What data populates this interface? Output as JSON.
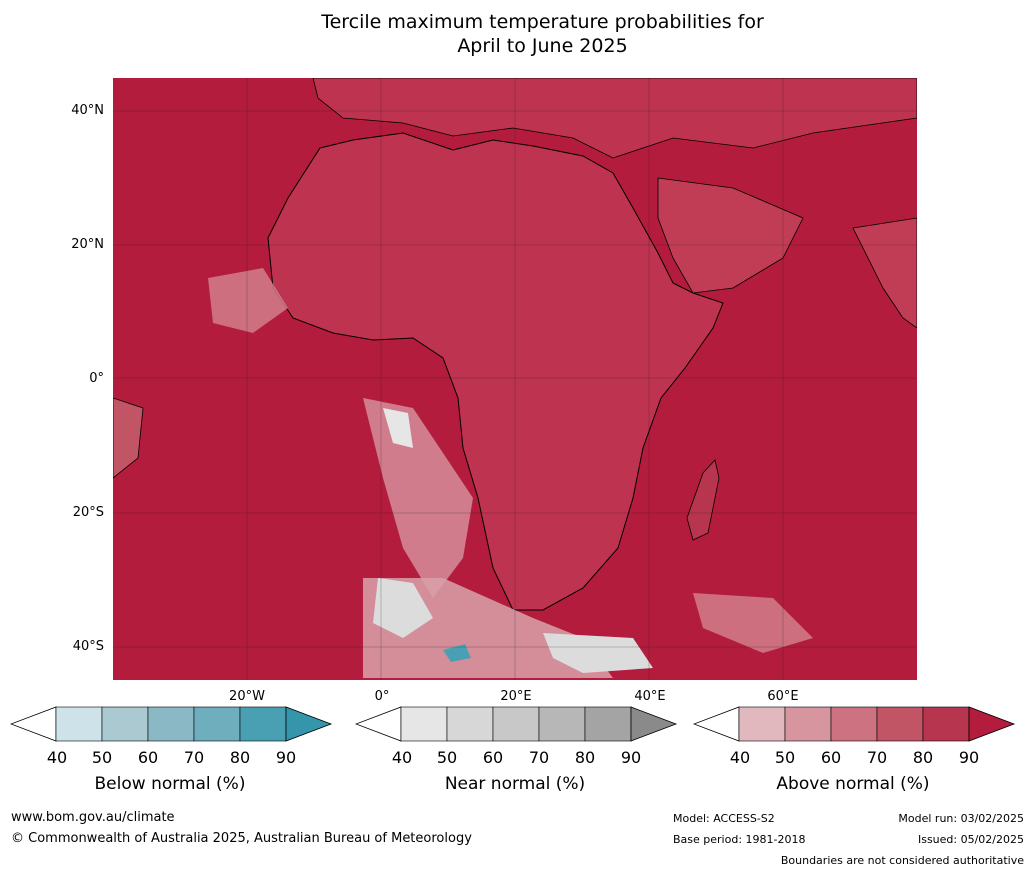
{
  "title_line1": "Tercile maximum temperature probabilities for",
  "title_line2": "April to June 2025",
  "lat_labels": [
    "40°N",
    "20°N",
    "0°",
    "20°S",
    "40°S"
  ],
  "lon_labels": [
    "20°W",
    "0°",
    "20°E",
    "40°E",
    "60°E"
  ],
  "colors": {
    "ocean_dominant": "#b31c3c",
    "above_90": "#b31c3c",
    "above_80": "#c33b52",
    "above_70": "#cb5a69",
    "above_60": "#d3848f",
    "above_50": "#d9a2aa",
    "near_normal": "#dcdcdc",
    "below_normal": "#4aa0b3",
    "coastline": "#000000",
    "country_border": "#888888",
    "gridline": "#222222"
  },
  "legends": [
    {
      "title": "Below normal (%)",
      "ticks": [
        "40",
        "50",
        "60",
        "70",
        "80",
        "90"
      ],
      "colors": [
        "#cde3e9",
        "#aac9d0",
        "#8ab8c4",
        "#6eaebd",
        "#4aa0b3",
        "#3596ab"
      ]
    },
    {
      "title": "Near normal (%)",
      "ticks": [
        "40",
        "50",
        "60",
        "70",
        "80",
        "90"
      ],
      "colors": [
        "#e6e6e6",
        "#d7d7d7",
        "#c8c8c8",
        "#b7b7b7",
        "#a4a4a4",
        "#8a8a8a"
      ]
    },
    {
      "title": "Above normal (%)",
      "ticks": [
        "40",
        "50",
        "60",
        "70",
        "80",
        "90"
      ],
      "colors": [
        "#e2b8bf",
        "#d795a0",
        "#cc7280",
        "#c15465",
        "#b8354f",
        "#b31c3c"
      ]
    }
  ],
  "footer": {
    "website": "www.bom.gov.au/climate",
    "copyright": "© Commonwealth of Australia 2025, Australian Bureau of Meteorology",
    "model": "Model: ACCESS-S2",
    "base_period": "Base period: 1981-2018",
    "model_run": "Model run: 03/02/2025",
    "issued": "Issued: 05/02/2025",
    "disclaimer": "Boundaries are not considered authoritative"
  }
}
